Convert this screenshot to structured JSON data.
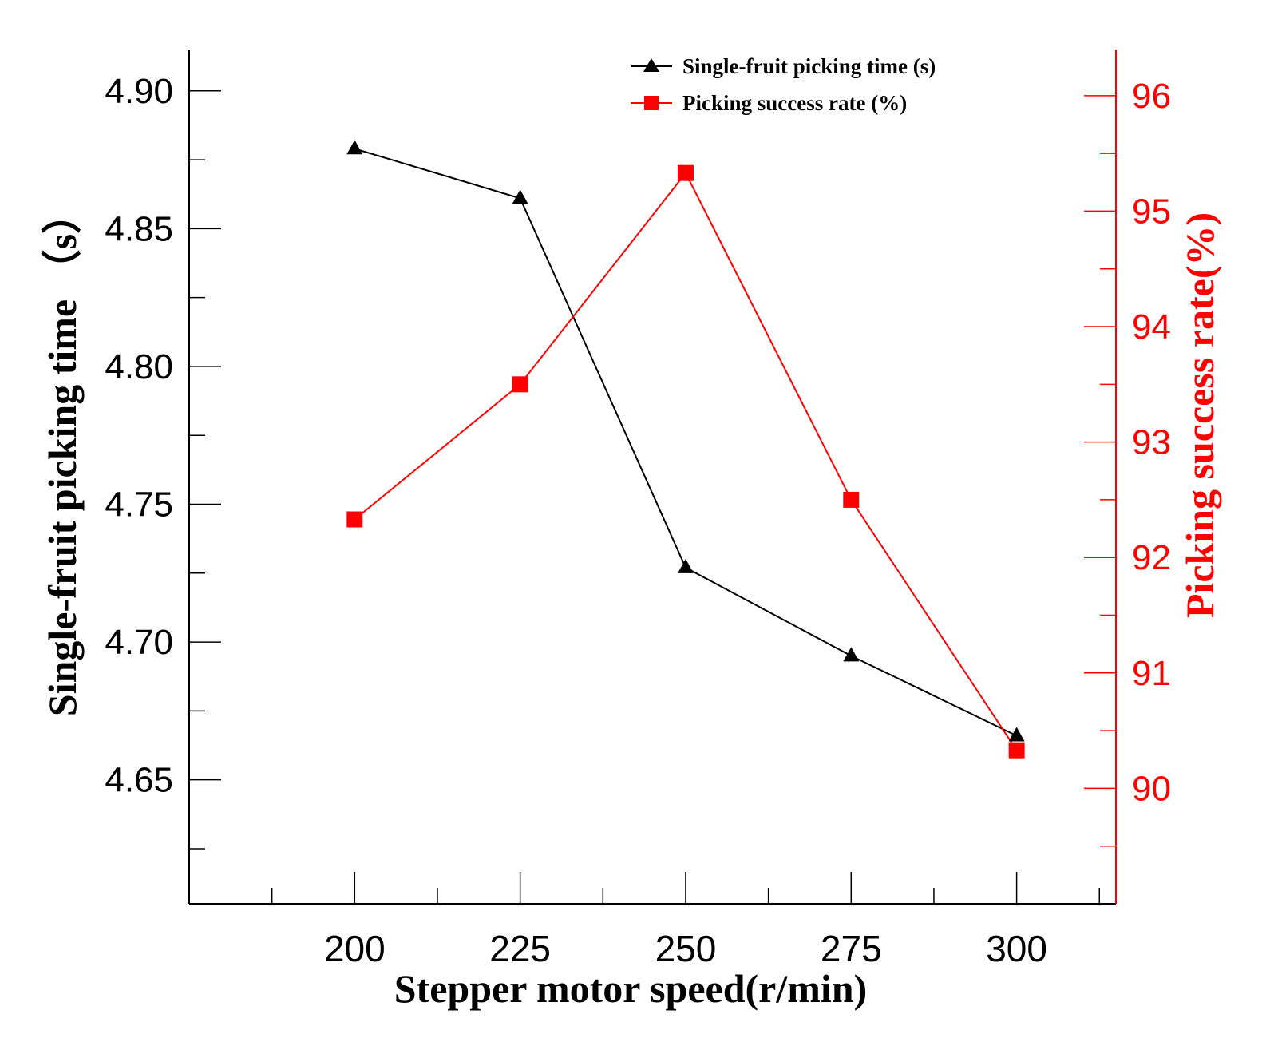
{
  "chart_data": {
    "type": "line",
    "x": [
      200,
      225,
      250,
      275,
      300
    ],
    "x_ticks": [
      "200",
      "225",
      "250",
      "275",
      "300"
    ],
    "xlabel": "Stepper motor speed(r/min)",
    "ylabel_left": "Single-fruit picking time （s）",
    "ylabel_right": "Picking success rate(%)",
    "ylim_left": [
      4.605,
      4.915
    ],
    "ylim_right": [
      89.0,
      96.4
    ],
    "yticks_left": [
      "4.90",
      "4.85",
      "4.80",
      "4.75",
      "4.70",
      "4.65"
    ],
    "yticks_right": [
      "96",
      "95",
      "94",
      "93",
      "92",
      "91",
      "90"
    ],
    "series": [
      {
        "name": "Single-fruit picking time (s)",
        "axis": "left",
        "marker": "triangle",
        "color": "#000000",
        "values": [
          4.879,
          4.861,
          4.727,
          4.695,
          4.666
        ]
      },
      {
        "name": "Picking success rate (%)",
        "axis": "right",
        "marker": "square",
        "color": "#ff0000",
        "values": [
          92.33,
          93.5,
          95.33,
          92.5,
          90.33
        ]
      }
    ],
    "legend": "top-right",
    "grid": false
  }
}
